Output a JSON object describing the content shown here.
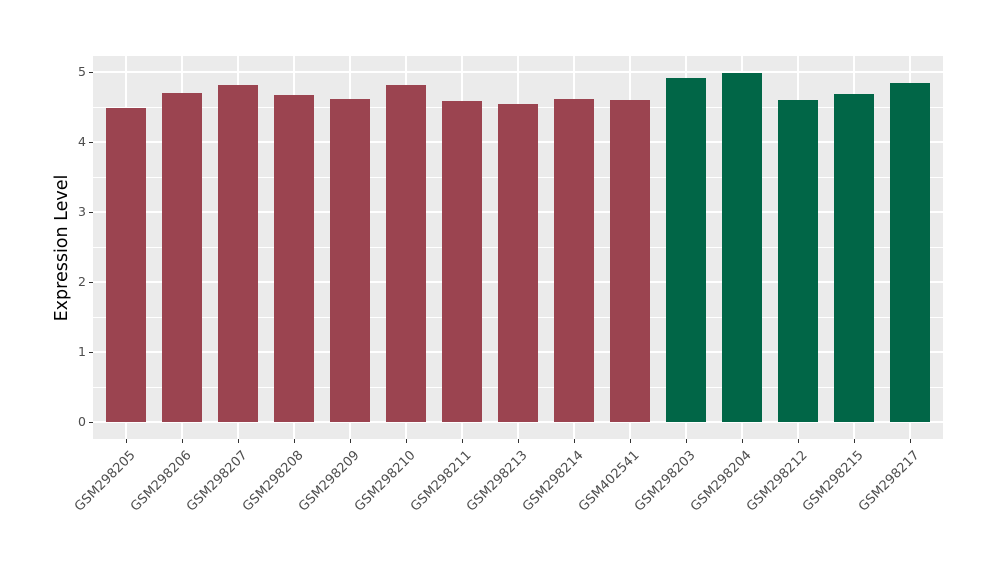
{
  "figure": {
    "background": "#FFFFFF",
    "panel_background": "#EBEBEB",
    "gridline_color": "#FFFFFF",
    "axis_text_color": "#4D4D4D",
    "axis_title_color": "#000000",
    "tick_mark_color": "#333333"
  },
  "chart_data": {
    "type": "bar",
    "title": "",
    "xlabel": "",
    "ylabel": "Expression Level",
    "legend": "none",
    "grid": "major and minor horizontal white lines, major vertical white lines at category centers, on gray panel",
    "ylim": [
      -0.26,
      5.23
    ],
    "y_ticks": [
      0,
      1,
      2,
      3,
      4,
      5
    ],
    "categories": [
      "GSM298205",
      "GSM298206",
      "GSM298207",
      "GSM298208",
      "GSM298209",
      "GSM298210",
      "GSM298211",
      "GSM298213",
      "GSM298214",
      "GSM402541",
      "GSM298203",
      "GSM298204",
      "GSM298212",
      "GSM298215",
      "GSM298217"
    ],
    "values": [
      4.49,
      4.7,
      4.81,
      4.67,
      4.61,
      4.81,
      4.58,
      4.54,
      4.61,
      4.6,
      4.91,
      4.98,
      4.6,
      4.69,
      4.84
    ],
    "bar_groups": [
      "red",
      "red",
      "red",
      "red",
      "red",
      "red",
      "red",
      "red",
      "red",
      "red",
      "green",
      "green",
      "green",
      "green",
      "green"
    ],
    "group_colors": {
      "red": "#9B4450",
      "green": "#016647"
    }
  }
}
